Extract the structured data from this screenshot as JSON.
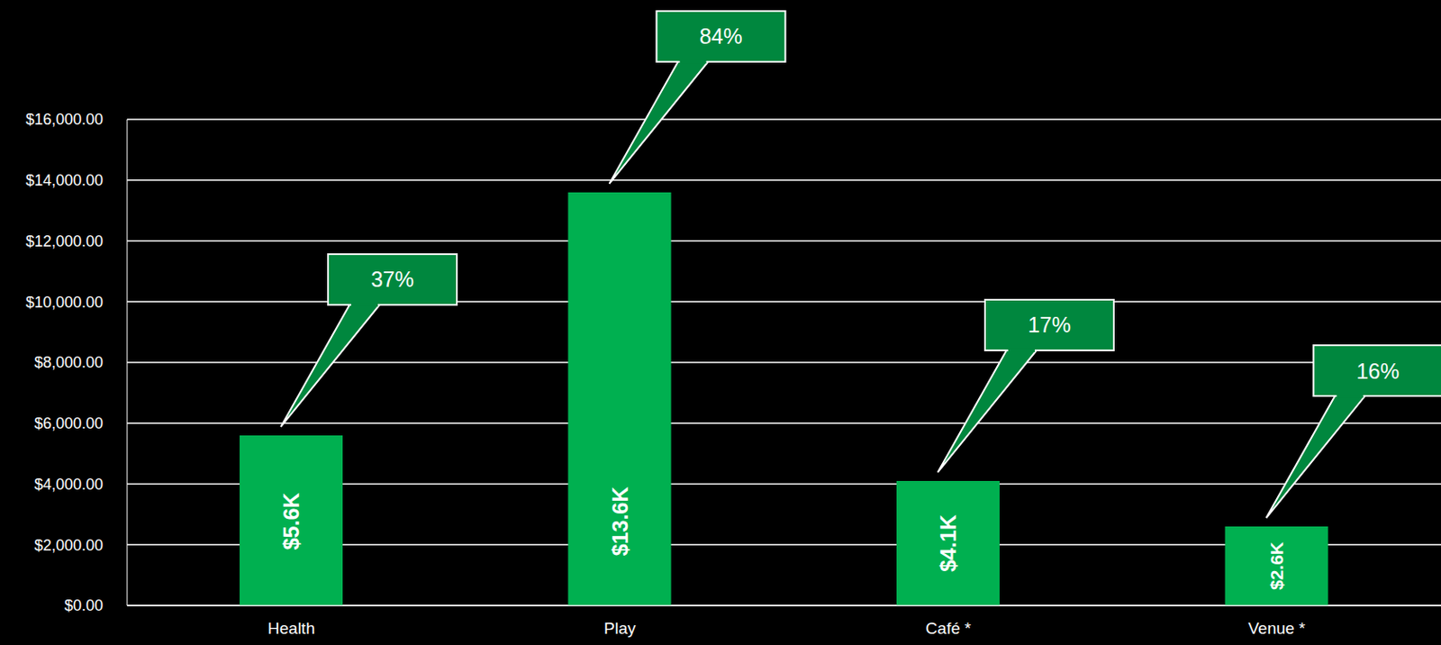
{
  "chart_data": {
    "type": "bar",
    "categories": [
      "Health",
      "Play",
      "Café *",
      "Venue *"
    ],
    "values": [
      5600,
      13600,
      4100,
      2600
    ],
    "value_labels": [
      "$5.6K",
      "$13.6K",
      "$4.1K",
      "$2.6K"
    ],
    "data_labels": true,
    "color": "#00b050",
    "ylim": [
      0,
      16000
    ],
    "yticks": [
      {
        "value": 0,
        "label": "$0.00"
      },
      {
        "value": 2000,
        "label": "$2,000.00"
      },
      {
        "value": 4000,
        "label": "$4,000.00"
      },
      {
        "value": 6000,
        "label": "$6,000.00"
      },
      {
        "value": 8000,
        "label": "$8,000.00"
      },
      {
        "value": 10000,
        "label": "$10,000.00"
      },
      {
        "value": 12000,
        "label": "$12,000.00"
      },
      {
        "value": 14000,
        "label": "$14,000.00"
      },
      {
        "value": 16000,
        "label": "$16,000.00"
      }
    ],
    "grid": true,
    "annotations": [
      {
        "category": "Health",
        "text": "37%"
      },
      {
        "category": "Play",
        "text": "84%"
      },
      {
        "category": "Café *",
        "text": "17%"
      },
      {
        "category": "Venue *",
        "text": "16%"
      }
    ]
  }
}
